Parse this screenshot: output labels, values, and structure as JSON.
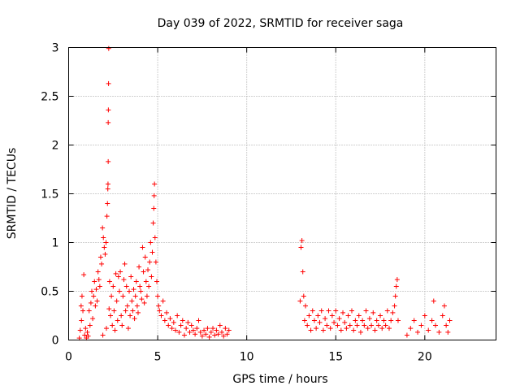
{
  "chart_data": {
    "type": "scatter",
    "title": "Day 039 of 2022, SRMTID for receiver saga",
    "xlabel": "GPS time / hours",
    "ylabel": "SRMTID / TECUs",
    "xlim": [
      0,
      24
    ],
    "ylim": [
      0,
      3
    ],
    "xticks": [
      0,
      5,
      10,
      15,
      20
    ],
    "xtick_labels": [
      "0",
      "5",
      "10",
      "15",
      "20"
    ],
    "yticks": [
      0,
      0.5,
      1,
      1.5,
      2,
      2.5,
      3
    ],
    "ytick_labels": [
      "0",
      "0.5",
      "1",
      "1.5",
      "2",
      "2.5",
      "3"
    ],
    "grid": true,
    "marker": "+",
    "color": "#ff0000",
    "series": [
      {
        "name": "SRMTID",
        "points": [
          [
            0.6,
            0.02
          ],
          [
            0.65,
            0.1
          ],
          [
            0.7,
            0.35
          ],
          [
            0.72,
            0.2
          ],
          [
            0.75,
            0.45
          ],
          [
            0.8,
            0.3
          ],
          [
            0.85,
            0.67
          ],
          [
            0.9,
            0.05
          ],
          [
            0.95,
            0.12
          ],
          [
            1.0,
            0.02
          ],
          [
            1.05,
            0.08
          ],
          [
            1.1,
            0.04
          ],
          [
            1.15,
            0.3
          ],
          [
            1.2,
            0.15
          ],
          [
            1.25,
            0.38
          ],
          [
            1.3,
            0.5
          ],
          [
            1.35,
            0.22
          ],
          [
            1.4,
            0.45
          ],
          [
            1.45,
            0.6
          ],
          [
            1.5,
            0.35
          ],
          [
            1.55,
            0.52
          ],
          [
            1.6,
            0.4
          ],
          [
            1.65,
            0.7
          ],
          [
            1.7,
            0.62
          ],
          [
            1.75,
            0.55
          ],
          [
            1.8,
            0.85
          ],
          [
            1.85,
            0.78
          ],
          [
            1.9,
            1.15
          ],
          [
            1.92,
            0.05
          ],
          [
            1.95,
            1.05
          ],
          [
            2.0,
            0.95
          ],
          [
            2.05,
            0.88
          ],
          [
            2.1,
            1.0
          ],
          [
            2.12,
            0.12
          ],
          [
            2.15,
            1.27
          ],
          [
            2.18,
            1.4
          ],
          [
            2.2,
            1.55
          ],
          [
            2.21,
            1.6
          ],
          [
            2.22,
            1.83
          ],
          [
            2.22,
            2.23
          ],
          [
            2.23,
            2.36
          ],
          [
            2.24,
            2.63
          ],
          [
            2.25,
            2.99
          ],
          [
            2.27,
            0.32
          ],
          [
            2.3,
            0.6
          ],
          [
            2.35,
            0.25
          ],
          [
            2.4,
            0.45
          ],
          [
            2.45,
            0.15
          ],
          [
            2.5,
            0.55
          ],
          [
            2.55,
            0.3
          ],
          [
            2.6,
            0.1
          ],
          [
            2.65,
            0.68
          ],
          [
            2.7,
            0.4
          ],
          [
            2.75,
            0.2
          ],
          [
            2.8,
            0.65
          ],
          [
            2.85,
            0.5
          ],
          [
            2.9,
            0.7
          ],
          [
            2.95,
            0.25
          ],
          [
            3.0,
            0.15
          ],
          [
            3.05,
            0.45
          ],
          [
            3.1,
            0.62
          ],
          [
            3.15,
            0.78
          ],
          [
            3.2,
            0.3
          ],
          [
            3.25,
            0.55
          ],
          [
            3.3,
            0.35
          ],
          [
            3.35,
            0.12
          ],
          [
            3.4,
            0.5
          ],
          [
            3.45,
            0.25
          ],
          [
            3.5,
            0.65
          ],
          [
            3.55,
            0.4
          ],
          [
            3.6,
            0.3
          ],
          [
            3.65,
            0.52
          ],
          [
            3.7,
            0.22
          ],
          [
            3.75,
            0.45
          ],
          [
            3.8,
            0.6
          ],
          [
            3.85,
            0.35
          ],
          [
            3.9,
            0.28
          ],
          [
            3.95,
            0.75
          ],
          [
            4.0,
            0.55
          ],
          [
            4.05,
            0.5
          ],
          [
            4.1,
            0.42
          ],
          [
            4.15,
            0.95
          ],
          [
            4.2,
            0.7
          ],
          [
            4.25,
            0.38
          ],
          [
            4.3,
            0.85
          ],
          [
            4.35,
            0.6
          ],
          [
            4.4,
            0.45
          ],
          [
            4.45,
            0.72
          ],
          [
            4.5,
            0.55
          ],
          [
            4.55,
            0.8
          ],
          [
            4.6,
            1.0
          ],
          [
            4.65,
            0.65
          ],
          [
            4.7,
            0.9
          ],
          [
            4.75,
            1.2
          ],
          [
            4.78,
            1.35
          ],
          [
            4.8,
            1.48
          ],
          [
            4.82,
            1.6
          ],
          [
            4.85,
            1.05
          ],
          [
            4.9,
            0.8
          ],
          [
            4.95,
            0.6
          ],
          [
            5.0,
            0.45
          ],
          [
            5.05,
            0.35
          ],
          [
            5.1,
            0.3
          ],
          [
            5.2,
            0.25
          ],
          [
            5.3,
            0.4
          ],
          [
            5.4,
            0.2
          ],
          [
            5.5,
            0.28
          ],
          [
            5.6,
            0.15
          ],
          [
            5.7,
            0.22
          ],
          [
            5.8,
            0.12
          ],
          [
            5.9,
            0.18
          ],
          [
            6.0,
            0.1
          ],
          [
            6.1,
            0.25
          ],
          [
            6.2,
            0.08
          ],
          [
            6.3,
            0.15
          ],
          [
            6.4,
            0.2
          ],
          [
            6.5,
            0.05
          ],
          [
            6.6,
            0.12
          ],
          [
            6.7,
            0.18
          ],
          [
            6.8,
            0.08
          ],
          [
            6.9,
            0.15
          ],
          [
            7.0,
            0.1
          ],
          [
            7.1,
            0.06
          ],
          [
            7.2,
            0.12
          ],
          [
            7.3,
            0.2
          ],
          [
            7.4,
            0.08
          ],
          [
            7.5,
            0.04
          ],
          [
            7.6,
            0.1
          ],
          [
            7.7,
            0.06
          ],
          [
            7.8,
            0.12
          ],
          [
            7.9,
            0.03
          ],
          [
            8.0,
            0.08
          ],
          [
            8.1,
            0.12
          ],
          [
            8.2,
            0.05
          ],
          [
            8.3,
            0.1
          ],
          [
            8.4,
            0.06
          ],
          [
            8.5,
            0.15
          ],
          [
            8.6,
            0.08
          ],
          [
            8.7,
            0.04
          ],
          [
            8.8,
            0.12
          ],
          [
            8.9,
            0.06
          ],
          [
            9.0,
            0.1
          ],
          [
            13.0,
            0.4
          ],
          [
            13.05,
            0.95
          ],
          [
            13.1,
            1.02
          ],
          [
            13.15,
            0.7
          ],
          [
            13.2,
            0.45
          ],
          [
            13.25,
            0.2
          ],
          [
            13.3,
            0.35
          ],
          [
            13.4,
            0.15
          ],
          [
            13.5,
            0.25
          ],
          [
            13.6,
            0.1
          ],
          [
            13.7,
            0.3
          ],
          [
            13.8,
            0.2
          ],
          [
            13.9,
            0.12
          ],
          [
            14.0,
            0.25
          ],
          [
            14.1,
            0.18
          ],
          [
            14.2,
            0.3
          ],
          [
            14.3,
            0.1
          ],
          [
            14.4,
            0.22
          ],
          [
            14.5,
            0.15
          ],
          [
            14.6,
            0.3
          ],
          [
            14.7,
            0.12
          ],
          [
            14.8,
            0.25
          ],
          [
            14.9,
            0.18
          ],
          [
            15.0,
            0.3
          ],
          [
            15.1,
            0.15
          ],
          [
            15.2,
            0.22
          ],
          [
            15.3,
            0.1
          ],
          [
            15.4,
            0.28
          ],
          [
            15.5,
            0.18
          ],
          [
            15.6,
            0.12
          ],
          [
            15.7,
            0.25
          ],
          [
            15.8,
            0.15
          ],
          [
            15.9,
            0.3
          ],
          [
            16.0,
            0.1
          ],
          [
            16.1,
            0.2
          ],
          [
            16.2,
            0.15
          ],
          [
            16.3,
            0.25
          ],
          [
            16.4,
            0.08
          ],
          [
            16.5,
            0.2
          ],
          [
            16.6,
            0.15
          ],
          [
            16.7,
            0.3
          ],
          [
            16.8,
            0.12
          ],
          [
            16.9,
            0.22
          ],
          [
            17.0,
            0.15
          ],
          [
            17.1,
            0.28
          ],
          [
            17.2,
            0.1
          ],
          [
            17.3,
            0.2
          ],
          [
            17.4,
            0.15
          ],
          [
            17.5,
            0.25
          ],
          [
            17.6,
            0.12
          ],
          [
            17.7,
            0.2
          ],
          [
            17.8,
            0.15
          ],
          [
            17.9,
            0.3
          ],
          [
            18.0,
            0.12
          ],
          [
            18.1,
            0.2
          ],
          [
            18.2,
            0.28
          ],
          [
            18.3,
            0.35
          ],
          [
            18.35,
            0.45
          ],
          [
            18.4,
            0.55
          ],
          [
            18.45,
            0.62
          ],
          [
            18.5,
            0.2
          ],
          [
            19.0,
            0.05
          ],
          [
            19.2,
            0.12
          ],
          [
            19.4,
            0.2
          ],
          [
            19.6,
            0.08
          ],
          [
            19.8,
            0.15
          ],
          [
            20.0,
            0.25
          ],
          [
            20.2,
            0.1
          ],
          [
            20.4,
            0.2
          ],
          [
            20.5,
            0.4
          ],
          [
            20.6,
            0.15
          ],
          [
            20.8,
            0.08
          ],
          [
            21.0,
            0.25
          ],
          [
            21.1,
            0.35
          ],
          [
            21.2,
            0.15
          ],
          [
            21.3,
            0.08
          ],
          [
            21.4,
            0.2
          ]
        ]
      }
    ]
  }
}
